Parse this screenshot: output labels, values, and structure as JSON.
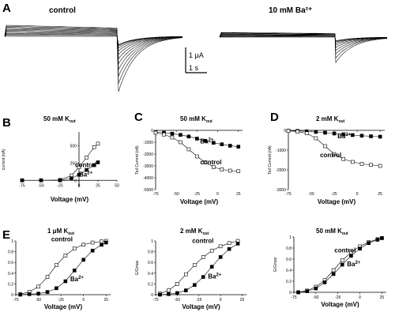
{
  "panels": {
    "A": {
      "letter": "A",
      "left_label": "control",
      "right_label": "10 mM Ba²⁺",
      "scalebar": {
        "current": "1 μA",
        "time": "1 s"
      }
    },
    "B": {
      "letter": "B"
    },
    "C": {
      "letter": "C"
    },
    "D": {
      "letter": "D"
    },
    "E": {
      "letter": "E"
    }
  },
  "chart_data": [
    {
      "panel": "B",
      "type": "scatter",
      "title": "50 mM K_out",
      "xlabel": "Voltage (mV)",
      "ylabel": "current (nA)",
      "xlim": [
        -75,
        50
      ],
      "ylim": [
        -100,
        700
      ],
      "xticks": [
        -75,
        -50,
        -25,
        0,
        25,
        50
      ],
      "yticks": [
        0,
        250,
        500
      ],
      "series": [
        {
          "name": "control",
          "marker": "open-square",
          "x": [
            -75,
            -50,
            -25,
            -10,
            0,
            10,
            20,
            25
          ],
          "y": [
            0,
            0,
            5,
            70,
            190,
            330,
            480,
            530
          ]
        },
        {
          "name": "Ba²⁺",
          "marker": "filled-square",
          "x": [
            -75,
            -50,
            -25,
            -10,
            0,
            10,
            20,
            25
          ],
          "y": [
            0,
            0,
            0,
            30,
            80,
            150,
            220,
            260
          ]
        }
      ]
    },
    {
      "panel": "C",
      "type": "line",
      "title": "50 mM K_out",
      "xlabel": "Voltage (mV)",
      "ylabel": "Tail Current (nA)",
      "xlim": [
        -75,
        30
      ],
      "ylim": [
        -5000,
        0
      ],
      "xticks": [
        -75,
        -50,
        -25,
        0,
        25
      ],
      "yticks": [
        0,
        -1000,
        -2000,
        -3000,
        -4000,
        -5000
      ],
      "series": [
        {
          "name": "Ba²⁺",
          "marker": "filled-square",
          "x": [
            -75,
            -65,
            -55,
            -45,
            -35,
            -25,
            -15,
            -5,
            5,
            15,
            25
          ],
          "y": [
            -150,
            -200,
            -280,
            -380,
            -520,
            -700,
            -880,
            -1050,
            -1180,
            -1300,
            -1380
          ]
        },
        {
          "name": "control",
          "marker": "open-square",
          "x": [
            -75,
            -65,
            -55,
            -45,
            -35,
            -25,
            -15,
            -5,
            5,
            15,
            25
          ],
          "y": [
            -200,
            -350,
            -600,
            -1000,
            -1600,
            -2200,
            -2700,
            -3100,
            -3300,
            -3400,
            -3450
          ]
        }
      ]
    },
    {
      "panel": "D",
      "type": "line",
      "title": "2 mM K_out",
      "xlabel": "Voltage (mV)",
      "ylabel": "Tail Current (nA)",
      "xlim": [
        -75,
        30
      ],
      "ylim": [
        -3000,
        0
      ],
      "xticks": [
        -75,
        -50,
        -25,
        0,
        25
      ],
      "yticks": [
        0,
        -1000,
        -2000,
        -3000
      ],
      "series": [
        {
          "name": "Ba²⁺",
          "marker": "filled-square",
          "x": [
            -75,
            -65,
            -55,
            -45,
            -35,
            -25,
            -15,
            -5,
            5,
            15,
            25
          ],
          "y": [
            -20,
            -30,
            -50,
            -80,
            -120,
            -160,
            -200,
            -240,
            -270,
            -300,
            -320
          ]
        },
        {
          "name": "control",
          "marker": "open-square",
          "x": [
            -75,
            -65,
            -55,
            -45,
            -35,
            -25,
            -15,
            -5,
            5,
            15,
            25
          ],
          "y": [
            -30,
            -60,
            -150,
            -400,
            -800,
            -1200,
            -1450,
            -1600,
            -1700,
            -1750,
            -1800
          ]
        }
      ]
    },
    {
      "panel": "E1",
      "type": "line",
      "title": "1 μM K_out",
      "xlabel": "Voltage (mV)",
      "ylabel": "G/Gmax",
      "xlim": [
        -75,
        30
      ],
      "ylim": [
        0,
        1.0
      ],
      "xticks": [
        -75,
        -50,
        -25,
        0,
        25
      ],
      "yticks": [
        0.0,
        0.2,
        0.4,
        0.6,
        0.8,
        1.0
      ],
      "series": [
        {
          "name": "control",
          "marker": "open-square",
          "x": [
            -70,
            -60,
            -50,
            -40,
            -30,
            -20,
            -10,
            0,
            10,
            20,
            25
          ],
          "y": [
            0.01,
            0.05,
            0.15,
            0.33,
            0.55,
            0.73,
            0.86,
            0.93,
            0.97,
            0.99,
            1.0
          ]
        },
        {
          "name": "Ba²⁺",
          "marker": "filled-square",
          "x": [
            -70,
            -60,
            -50,
            -40,
            -30,
            -20,
            -10,
            0,
            10,
            20,
            25
          ],
          "y": [
            0.0,
            0.01,
            0.02,
            0.05,
            0.12,
            0.25,
            0.45,
            0.65,
            0.82,
            0.93,
            0.97
          ]
        }
      ]
    },
    {
      "panel": "E2",
      "type": "line",
      "title": "2 mM K_out",
      "xlabel": "Voltage (mV)",
      "ylabel": "G/Gmax",
      "xlim": [
        -75,
        30
      ],
      "ylim": [
        0,
        1.0
      ],
      "xticks": [
        -75,
        -50,
        -25,
        0,
        25
      ],
      "yticks": [
        0.0,
        0.2,
        0.4,
        0.6,
        0.8,
        1.0
      ],
      "series": [
        {
          "name": "control",
          "marker": "open-square",
          "x": [
            -70,
            -60,
            -50,
            -40,
            -30,
            -20,
            -10,
            0,
            10,
            20
          ],
          "y": [
            0.02,
            0.08,
            0.2,
            0.38,
            0.55,
            0.7,
            0.82,
            0.9,
            0.96,
            1.0
          ]
        },
        {
          "name": "Ba²⁺",
          "marker": "filled-square",
          "x": [
            -70,
            -60,
            -50,
            -40,
            -30,
            -20,
            -10,
            0,
            10,
            20
          ],
          "y": [
            0.0,
            0.01,
            0.03,
            0.08,
            0.18,
            0.33,
            0.52,
            0.7,
            0.85,
            0.95
          ]
        }
      ]
    },
    {
      "panel": "E3",
      "type": "line",
      "title": "50 mM K_out",
      "xlabel": "Voltage (mV)",
      "ylabel": "G/Gmax",
      "xlim": [
        -75,
        30
      ],
      "ylim": [
        0,
        1.0
      ],
      "xticks": [
        -75,
        -50,
        -25,
        0,
        25
      ],
      "yticks": [
        0.0,
        0.2,
        0.4,
        0.6,
        0.8,
        1.0
      ],
      "series": [
        {
          "name": "control",
          "marker": "open-square",
          "x": [
            -70,
            -60,
            -50,
            -40,
            -30,
            -20,
            -10,
            0,
            10,
            20,
            25
          ],
          "y": [
            0.0,
            0.03,
            0.1,
            0.22,
            0.4,
            0.58,
            0.72,
            0.83,
            0.91,
            0.96,
            0.98
          ]
        },
        {
          "name": "Ba²⁺",
          "marker": "filled-square",
          "x": [
            -70,
            -60,
            -50,
            -40,
            -30,
            -20,
            -10,
            0,
            10,
            20,
            25
          ],
          "y": [
            0.0,
            0.02,
            0.07,
            0.18,
            0.33,
            0.5,
            0.66,
            0.79,
            0.89,
            0.95,
            0.98
          ]
        }
      ]
    }
  ]
}
